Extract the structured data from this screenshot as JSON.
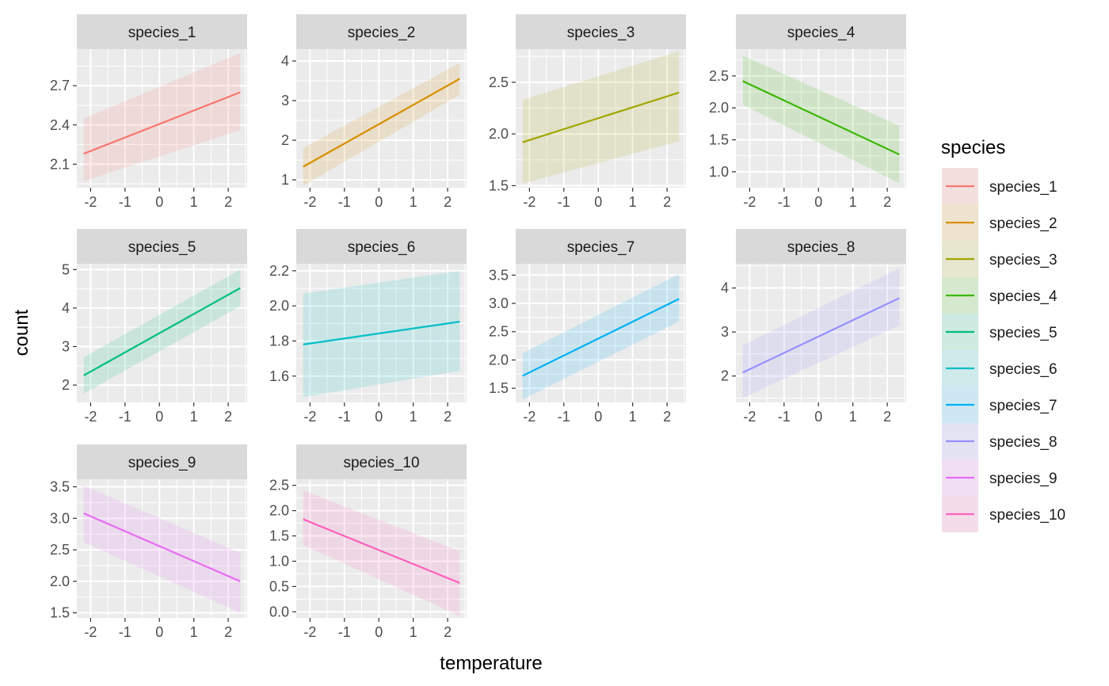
{
  "chart_data": {
    "type": "line",
    "facet_by": "species",
    "xlabel": "temperature",
    "ylabel": "count",
    "x_ticks": [
      "-2",
      "-1",
      "0",
      "1",
      "2"
    ],
    "x_tick_values": [
      -2,
      -1,
      0,
      1,
      2
    ],
    "xlim": [
      -2.4,
      2.55
    ],
    "x_range": [
      -2.2,
      2.35
    ],
    "grid": true,
    "confidence_band": true,
    "legend": {
      "title": "species",
      "position": "right",
      "entries": [
        "species_1",
        "species_2",
        "species_3",
        "species_4",
        "species_5",
        "species_6",
        "species_7",
        "species_8",
        "species_9",
        "species_10"
      ]
    },
    "panels": [
      {
        "name": "species_1",
        "color": "#F8766D",
        "ylim": [
          1.92,
          2.98
        ],
        "y_ticks": [
          2.1,
          2.4,
          2.7
        ],
        "y_tick_labels": [
          "2.1",
          "2.4",
          "2.7"
        ],
        "y_start": 2.18,
        "y_end": 2.65,
        "lower_start": 1.97,
        "lower_end": 2.36,
        "upper_start": 2.45,
        "upper_end": 2.95
      },
      {
        "name": "species_2",
        "color": "#D89000",
        "ylim": [
          0.8,
          4.3
        ],
        "y_ticks": [
          1,
          2,
          3,
          4
        ],
        "y_tick_labels": [
          "1",
          "2",
          "3",
          "4"
        ],
        "y_start": 1.33,
        "y_end": 3.55,
        "lower_start": 0.85,
        "lower_end": 3.15,
        "upper_start": 1.8,
        "upper_end": 3.95
      },
      {
        "name": "species_3",
        "color": "#A3A500",
        "ylim": [
          1.48,
          2.82
        ],
        "y_ticks": [
          1.5,
          2.0,
          2.5
        ],
        "y_tick_labels": [
          "1.5",
          "2.0",
          "2.5"
        ],
        "y_start": 1.92,
        "y_end": 2.4,
        "lower_start": 1.52,
        "lower_end": 1.93,
        "upper_start": 2.33,
        "upper_end": 2.8
      },
      {
        "name": "species_4",
        "color": "#39B600",
        "ylim": [
          0.75,
          2.92
        ],
        "y_ticks": [
          1.0,
          1.5,
          2.0,
          2.5
        ],
        "y_tick_labels": [
          "1.0",
          "1.5",
          "2.0",
          "2.5"
        ],
        "y_start": 2.42,
        "y_end": 1.27,
        "lower_start": 2.05,
        "lower_end": 0.82,
        "upper_start": 2.82,
        "upper_end": 1.72
      },
      {
        "name": "species_5",
        "color": "#00BF7D",
        "ylim": [
          1.55,
          5.15
        ],
        "y_ticks": [
          2,
          3,
          4,
          5
        ],
        "y_tick_labels": [
          "2",
          "3",
          "4",
          "5"
        ],
        "y_start": 2.25,
        "y_end": 4.52,
        "lower_start": 1.78,
        "lower_end": 4.05,
        "upper_start": 2.72,
        "upper_end": 5.0
      },
      {
        "name": "species_6",
        "color": "#00BFC4",
        "ylim": [
          1.45,
          2.24
        ],
        "y_ticks": [
          1.6,
          1.8,
          2.0,
          2.2
        ],
        "y_tick_labels": [
          "1.6",
          "1.8",
          "2.0",
          "2.2"
        ],
        "y_start": 1.78,
        "y_end": 1.91,
        "lower_start": 1.48,
        "lower_end": 1.63,
        "upper_start": 2.07,
        "upper_end": 2.2
      },
      {
        "name": "species_7",
        "color": "#00B0F6",
        "ylim": [
          1.25,
          3.7
        ],
        "y_ticks": [
          1.5,
          2.0,
          2.5,
          3.0,
          3.5
        ],
        "y_tick_labels": [
          "1.5",
          "2.0",
          "2.5",
          "3.0",
          "3.5"
        ],
        "y_start": 1.72,
        "y_end": 3.08,
        "lower_start": 1.3,
        "lower_end": 2.68,
        "upper_start": 2.12,
        "upper_end": 3.52
      },
      {
        "name": "species_8",
        "color": "#9590FF",
        "ylim": [
          1.4,
          4.55
        ],
        "y_ticks": [
          2,
          3,
          4
        ],
        "y_tick_labels": [
          "2",
          "3",
          "4"
        ],
        "y_start": 2.08,
        "y_end": 3.77,
        "lower_start": 1.5,
        "lower_end": 3.15,
        "upper_start": 2.7,
        "upper_end": 4.45
      },
      {
        "name": "species_9",
        "color": "#E76BF3",
        "ylim": [
          1.42,
          3.62
        ],
        "y_ticks": [
          1.5,
          2.0,
          2.5,
          3.0,
          3.5
        ],
        "y_tick_labels": [
          "1.5",
          "2.0",
          "2.5",
          "3.0",
          "3.5"
        ],
        "y_start": 3.08,
        "y_end": 2.0,
        "lower_start": 2.62,
        "lower_end": 1.5,
        "upper_start": 3.52,
        "upper_end": 2.45
      },
      {
        "name": "species_10",
        "color": "#FF62BC",
        "ylim": [
          -0.12,
          2.62
        ],
        "y_ticks": [
          0.0,
          0.5,
          1.0,
          1.5,
          2.0,
          2.5
        ],
        "y_tick_labels": [
          "0.0",
          "0.5",
          "1.0",
          "1.5",
          "2.0",
          "2.5"
        ],
        "y_start": 1.83,
        "y_end": 0.57,
        "lower_start": 1.32,
        "lower_end": -0.08,
        "upper_start": 2.4,
        "upper_end": 1.2
      }
    ]
  }
}
